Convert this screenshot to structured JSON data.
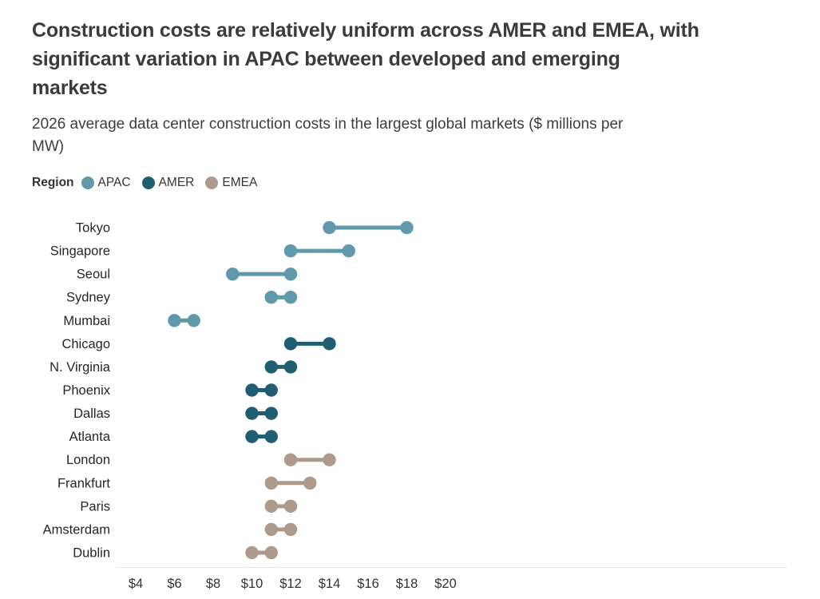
{
  "header": {
    "title": "Construction costs are relatively uniform across AMER and EMEA, with\nsignificant variation in APAC between developed and emerging\nmarkets",
    "subtitle": "2026 average data center construction costs in the largest global markets ($ millions per\nMW)"
  },
  "legend": {
    "label": "Region"
  },
  "chart_data": {
    "type": "dumbbell",
    "title": "Construction costs are relatively uniform across AMER and EMEA, with significant variation in APAC between developed and emerging markets",
    "subtitle": "2026 average data center construction costs in the largest global markets ($ millions per MW)",
    "xlabel": "",
    "ylabel": "",
    "x_axis": {
      "min": 4,
      "max": 20,
      "tick_prefix": "$",
      "ticks": [
        4,
        6,
        8,
        10,
        12,
        14,
        16,
        18,
        20
      ],
      "grid": false
    },
    "legend_title": "Region",
    "regions": [
      {
        "name": "APAC",
        "color": "#5f99ab"
      },
      {
        "name": "AMER",
        "color": "#1f5d73"
      },
      {
        "name": "EMEA",
        "color": "#ae9a8b"
      }
    ],
    "rows": [
      {
        "city": "Tokyo",
        "region": "APAC",
        "low": 14,
        "high": 18
      },
      {
        "city": "Singapore",
        "region": "APAC",
        "low": 12,
        "high": 15
      },
      {
        "city": "Seoul",
        "region": "APAC",
        "low": 9,
        "high": 12
      },
      {
        "city": "Sydney",
        "region": "APAC",
        "low": 11,
        "high": 12
      },
      {
        "city": "Mumbai",
        "region": "APAC",
        "low": 6,
        "high": 7
      },
      {
        "city": "Chicago",
        "region": "AMER",
        "low": 12,
        "high": 14
      },
      {
        "city": "N. Virginia",
        "region": "AMER",
        "low": 11,
        "high": 12
      },
      {
        "city": "Phoenix",
        "region": "AMER",
        "low": 10,
        "high": 11
      },
      {
        "city": "Dallas",
        "region": "AMER",
        "low": 10,
        "high": 11
      },
      {
        "city": "Atlanta",
        "region": "AMER",
        "low": 10,
        "high": 11
      },
      {
        "city": "London",
        "region": "EMEA",
        "low": 12,
        "high": 14
      },
      {
        "city": "Frankfurt",
        "region": "EMEA",
        "low": 11,
        "high": 13
      },
      {
        "city": "Paris",
        "region": "EMEA",
        "low": 11,
        "high": 12
      },
      {
        "city": "Amsterdam",
        "region": "EMEA",
        "low": 11,
        "high": 12
      },
      {
        "city": "Dublin",
        "region": "EMEA",
        "low": 10,
        "high": 11
      }
    ],
    "axis_line_color": "#e3e3e3"
  }
}
